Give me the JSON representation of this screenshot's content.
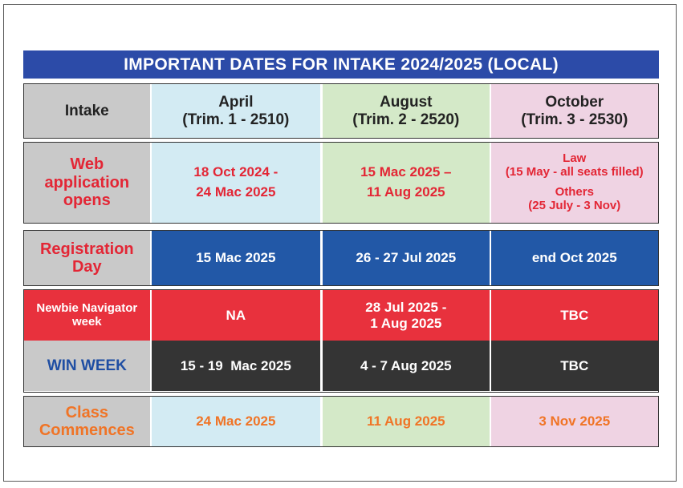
{
  "title": "IMPORTANT DATES FOR INTAKE 2024/2025 (LOCAL)",
  "header": {
    "label": "Intake",
    "april": [
      "April",
      "(Trim. 1 - 2510)"
    ],
    "august": [
      "August",
      "(Trim. 2 - 2520)"
    ],
    "october": [
      "October",
      "(Trim. 3 - 2530)"
    ]
  },
  "web_application": {
    "label": [
      "Web",
      "application",
      "opens"
    ],
    "april": [
      "18 Oct 2024 -",
      "24 Mac 2025"
    ],
    "august": [
      "15 Mac 2025  –",
      "11 Aug 2025"
    ],
    "october": {
      "law_title": "Law",
      "law_detail": "(15 May - all seats filled)",
      "others_title": "Others",
      "others_detail": "(25 July - 3 Nov)"
    }
  },
  "registration": {
    "label": [
      "Registration",
      "Day"
    ],
    "april": "15 Mac 2025",
    "august": "26 - 27 Jul 2025",
    "october": "end Oct 2025"
  },
  "newbie": {
    "label": [
      "Newbie Navigator",
      "week"
    ],
    "april": "NA",
    "august": [
      "28 Jul 2025 -",
      "1 Aug 2025"
    ],
    "october": "TBC"
  },
  "win_week": {
    "label": "WIN WEEK",
    "april": "15 - 19  Mac 2025",
    "august": "4 - 7 Aug 2025",
    "october": "TBC"
  },
  "class_commences": {
    "label": [
      "Class",
      "Commences"
    ],
    "april": "24 Mac 2025",
    "august": "11 Aug 2025",
    "october": "3 Nov 2025"
  },
  "colors": {
    "title_bar": "#2c4ba8",
    "label_bg": "#c9c9c9",
    "april_bg": "#d3ebf3",
    "august_bg": "#d4e9c8",
    "october_bg": "#efd3e3",
    "registration_bg": "#2258a7",
    "newbie_bg": "#e8313d",
    "win_week_bg": "#343434",
    "red_text": "#e32635",
    "orange_text": "#f07426",
    "blue_text": "#1f4ea3"
  }
}
